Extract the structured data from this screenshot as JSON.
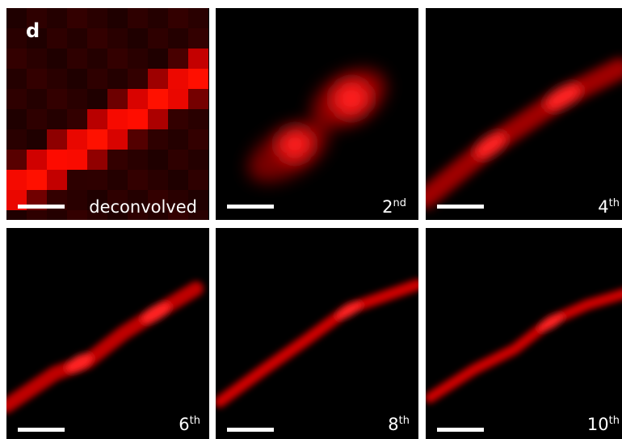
{
  "panel_label": "d",
  "panels": [
    {
      "label": "deconvolved"
    },
    {
      "number": "2",
      "suffix": "nd"
    },
    {
      "number": "4",
      "suffix": "th"
    },
    {
      "number": "6",
      "suffix": "th"
    },
    {
      "number": "8",
      "suffix": "th"
    },
    {
      "number": "10",
      "suffix": "th"
    }
  ]
}
